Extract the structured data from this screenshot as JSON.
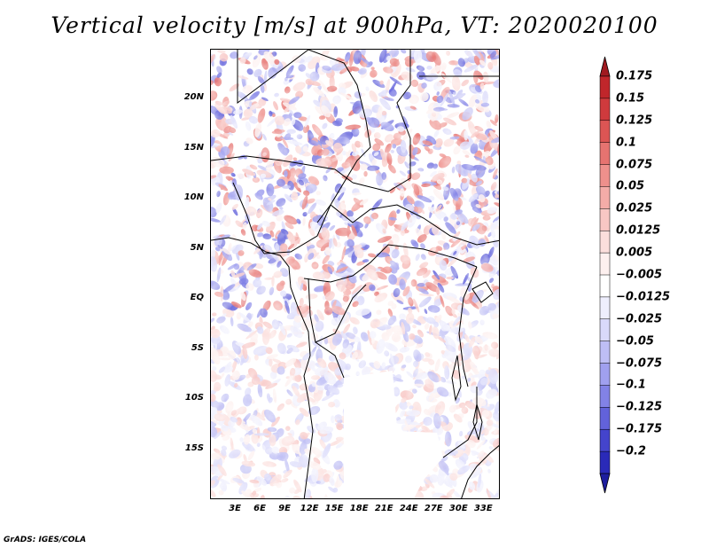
{
  "title": "Vertical velocity [m/s] at 900hPa, VT: 2020020100",
  "credit": "GrADS: IGES/COLA",
  "map": {
    "type": "filled-contour-map",
    "region": "Central Africa",
    "lon_range": [
      0,
      35
    ],
    "lat_range": [
      -20,
      25
    ],
    "lat_ticks": [
      {
        "value": 20,
        "label": "20N"
      },
      {
        "value": 15,
        "label": "15N"
      },
      {
        "value": 10,
        "label": "10N"
      },
      {
        "value": 5,
        "label": "5N"
      },
      {
        "value": 0,
        "label": "EQ"
      },
      {
        "value": -5,
        "label": "5S"
      },
      {
        "value": -10,
        "label": "10S"
      },
      {
        "value": -15,
        "label": "15S"
      }
    ],
    "lon_ticks": [
      {
        "value": 3,
        "label": "3E"
      },
      {
        "value": 6,
        "label": "6E"
      },
      {
        "value": 9,
        "label": "9E"
      },
      {
        "value": 12,
        "label": "12E"
      },
      {
        "value": 15,
        "label": "15E"
      },
      {
        "value": 18,
        "label": "18E"
      },
      {
        "value": 21,
        "label": "21E"
      },
      {
        "value": 24,
        "label": "24E"
      },
      {
        "value": 27,
        "label": "27E"
      },
      {
        "value": 30,
        "label": "30E"
      },
      {
        "value": 33,
        "label": "33E"
      }
    ]
  },
  "colorbar": {
    "levels": [
      {
        "label": "0.175",
        "color": "#c0262b"
      },
      {
        "label": "0.15",
        "color": "#cf3a3d"
      },
      {
        "label": "0.125",
        "color": "#dc5554"
      },
      {
        "label": "0.1",
        "color": "#e67370"
      },
      {
        "label": "0.075",
        "color": "#ee908c"
      },
      {
        "label": "0.05",
        "color": "#f4aca8"
      },
      {
        "label": "0.025",
        "color": "#f8c7c4"
      },
      {
        "label": "0.0125",
        "color": "#fbdedc"
      },
      {
        "label": "0.005",
        "color": "#fdf0ef"
      },
      {
        "label": "−0.005",
        "color": "#ffffff"
      },
      {
        "label": "−0.0125",
        "color": "#eeeefd"
      },
      {
        "label": "−0.025",
        "color": "#d9d9fa"
      },
      {
        "label": "−0.05",
        "color": "#bebef5"
      },
      {
        "label": "−0.075",
        "color": "#a0a0ef"
      },
      {
        "label": "−0.1",
        "color": "#8282e6"
      },
      {
        "label": "−0.125",
        "color": "#6262da"
      },
      {
        "label": "−0.175",
        "color": "#4444cc"
      },
      {
        "label": "−0.2",
        "color": "#2a2ab8"
      }
    ],
    "top_arrow_color": "#a01a20",
    "bottom_arrow_color": "#1e1e9e"
  }
}
